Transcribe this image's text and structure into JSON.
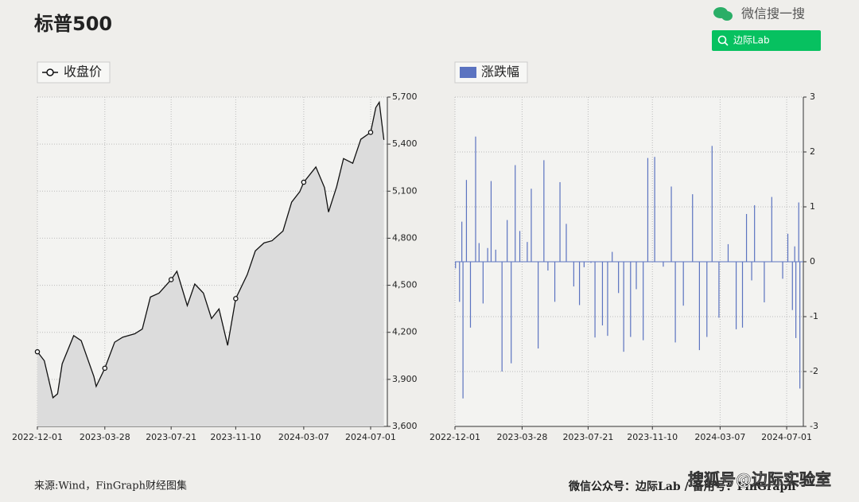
{
  "header": {
    "title": "标普500",
    "search_hint": "微信搜一搜",
    "search_button": "边际Lab"
  },
  "footer": {
    "source": "来源:Wind，FinGraph财经图集",
    "account": "微信公众号：边际Lab / 备用号：FinGraph",
    "watermark": "搜狐号@边际实验室"
  },
  "chart_data": [
    {
      "type": "line",
      "legend": "收盘价",
      "color": "#111111",
      "fill": "#dcdcdc",
      "grid": true,
      "x": [
        "2022-12-01",
        "2022-12-13",
        "2022-12-28",
        "2023-01-05",
        "2023-01-13",
        "2023-02-02",
        "2023-02-15",
        "2023-03-09",
        "2023-03-13",
        "2023-03-28",
        "2023-04-14",
        "2023-04-28",
        "2023-05-19",
        "2023-06-01",
        "2023-06-15",
        "2023-06-30",
        "2023-07-21",
        "2023-07-31",
        "2023-08-18",
        "2023-08-31",
        "2023-09-15",
        "2023-09-29",
        "2023-10-12",
        "2023-10-27",
        "2023-11-10",
        "2023-11-30",
        "2023-12-14",
        "2023-12-29",
        "2024-01-12",
        "2024-01-31",
        "2024-02-15",
        "2024-02-29",
        "2024-03-07",
        "2024-03-28",
        "2024-04-12",
        "2024-04-19",
        "2024-05-03",
        "2024-05-15",
        "2024-05-31",
        "2024-06-14",
        "2024-07-01",
        "2024-07-10",
        "2024-07-16",
        "2024-07-24"
      ],
      "values": [
        4076,
        4019,
        3783,
        3808,
        3999,
        4179,
        4147,
        3918,
        3855,
        3971,
        4137,
        4169,
        4191,
        4221,
        4425,
        4450,
        4536,
        4589,
        4370,
        4508,
        4450,
        4288,
        4349,
        4117,
        4415,
        4568,
        4719,
        4770,
        4784,
        4846,
        5030,
        5096,
        5157,
        5254,
        5123,
        4967,
        5128,
        5308,
        5278,
        5431,
        5475,
        5633,
        5667,
        5427
      ],
      "xlim": [
        "2022-12-01",
        "2024-07-30"
      ],
      "xticks": [
        "2022-12-01",
        "2023-03-28",
        "2023-07-21",
        "2023-11-10",
        "2024-03-07",
        "2024-07-01"
      ],
      "ylim": [
        3600,
        5700
      ],
      "yticks": [
        {
          "value": 3600,
          "label": "3,600"
        },
        {
          "value": 3900,
          "label": "3,900"
        },
        {
          "value": 4200,
          "label": "4,200"
        },
        {
          "value": 4500,
          "label": "4,500"
        },
        {
          "value": 4800,
          "label": "4,800"
        },
        {
          "value": 5100,
          "label": "5,100"
        },
        {
          "value": 5400,
          "label": "5,400"
        },
        {
          "value": 5700,
          "label": "5,700"
        }
      ]
    },
    {
      "type": "bar",
      "legend": "涨跌幅",
      "color": "#5b73c0",
      "grid": true,
      "x": [
        "2022-12-02",
        "2022-12-09",
        "2022-12-13",
        "2022-12-15",
        "2022-12-21",
        "2022-12-28",
        "2023-01-06",
        "2023-01-12",
        "2023-01-19",
        "2023-01-27",
        "2023-02-02",
        "2023-02-10",
        "2023-02-21",
        "2023-03-02",
        "2023-03-09",
        "2023-03-16",
        "2023-03-24",
        "2023-04-06",
        "2023-04-13",
        "2023-04-25",
        "2023-05-05",
        "2023-05-12",
        "2023-05-24",
        "2023-06-02",
        "2023-06-13",
        "2023-06-26",
        "2023-07-06",
        "2023-07-14",
        "2023-07-26",
        "2023-08-02",
        "2023-08-15",
        "2023-08-24",
        "2023-09-01",
        "2023-09-12",
        "2023-09-21",
        "2023-10-03",
        "2023-10-13",
        "2023-10-25",
        "2023-11-02",
        "2023-11-14",
        "2023-11-29",
        "2023-12-13",
        "2023-12-20",
        "2024-01-03",
        "2024-01-19",
        "2024-01-31",
        "2024-02-13",
        "2024-02-22",
        "2024-03-05",
        "2024-03-21",
        "2024-04-04",
        "2024-04-15",
        "2024-04-22",
        "2024-05-01",
        "2024-05-06",
        "2024-05-23",
        "2024-06-05",
        "2024-06-24",
        "2024-07-03",
        "2024-07-11",
        "2024-07-15",
        "2024-07-17",
        "2024-07-22",
        "2024-07-24"
      ],
      "values": [
        -0.12,
        -0.73,
        0.73,
        -2.49,
        1.49,
        -1.2,
        2.28,
        0.34,
        -0.76,
        0.25,
        1.47,
        0.22,
        -2.0,
        0.76,
        -1.85,
        1.76,
        0.56,
        0.36,
        1.33,
        -1.58,
        1.85,
        -0.16,
        -0.73,
        1.45,
        0.69,
        -0.45,
        -0.79,
        -0.1,
        -0.02,
        -1.38,
        -1.16,
        -1.35,
        0.18,
        -0.57,
        -1.64,
        -1.37,
        -0.5,
        -1.43,
        1.89,
        1.91,
        -0.09,
        1.37,
        -1.47,
        -0.8,
        1.23,
        -1.61,
        -1.37,
        2.11,
        -1.02,
        0.32,
        -1.23,
        -1.2,
        0.87,
        -0.34,
        1.03,
        -0.74,
        1.18,
        -0.31,
        0.51,
        -0.88,
        0.28,
        -1.39,
        1.08,
        -2.31
      ],
      "xlim": [
        "2022-12-01",
        "2024-07-30"
      ],
      "xticks": [
        "2022-12-01",
        "2023-03-28",
        "2023-07-21",
        "2023-11-10",
        "2024-03-07",
        "2024-07-01"
      ],
      "ylim": [
        -3,
        3
      ],
      "yticks": [
        -3,
        -2,
        -1,
        0,
        1,
        2,
        3
      ]
    }
  ]
}
